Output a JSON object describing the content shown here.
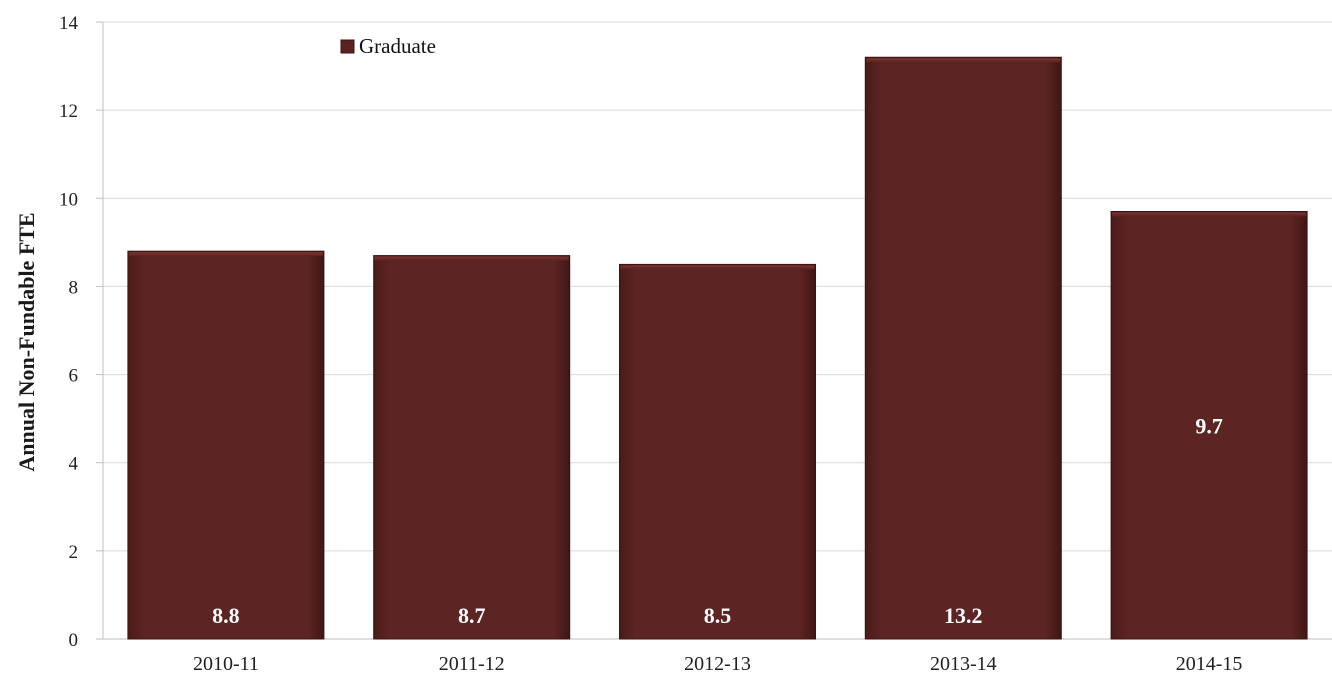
{
  "chart_data": {
    "type": "bar",
    "categories": [
      "2010-11",
      "2011-12",
      "2012-13",
      "2013-14",
      "2014-15"
    ],
    "series": [
      {
        "name": "Graduate",
        "values": [
          8.8,
          8.7,
          8.5,
          13.2,
          9.7
        ],
        "labels": [
          "8.8",
          "8.7",
          "8.5",
          "13.2",
          "9.7"
        ],
        "color": "#5a2220"
      }
    ],
    "title": "",
    "xlabel": "",
    "ylabel": "Annual Non-Fundable FTE",
    "ylim": [
      0,
      14
    ],
    "yticks": [
      "0",
      "2",
      "4",
      "6",
      "8",
      "10",
      "12",
      "14"
    ],
    "grid": true,
    "legend": "top-left",
    "gridline_color": "#d9d9d9"
  }
}
